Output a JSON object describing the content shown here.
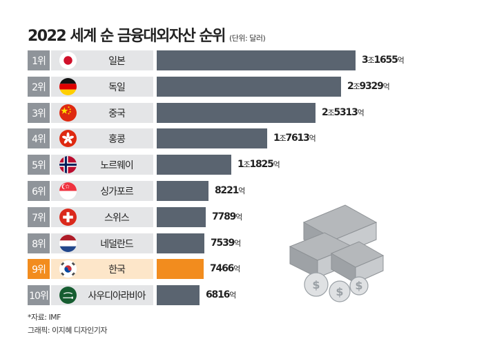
{
  "title": "2022 세계 순 금융대외자산 순위",
  "unit_note": "(단위: 달러)",
  "chart_data": {
    "type": "bar",
    "orientation": "horizontal",
    "title": "2022 세계 순 금융대외자산 순위",
    "unit": "달러",
    "categories": [
      "일본",
      "독일",
      "중국",
      "홍콩",
      "노르웨이",
      "싱가포르",
      "스위스",
      "네덜란드",
      "한국",
      "사우디아라비아"
    ],
    "values": [
      3.1655,
      2.9329,
      2.5313,
      1.7613,
      1.1825,
      0.8221,
      0.7789,
      0.7539,
      0.7466,
      0.6816
    ],
    "value_unit": "조 달러",
    "xlim": [
      0,
      3.3
    ],
    "highlight": "한국",
    "colors": {
      "bar": "#5a6470",
      "highlight": "#f28c1e",
      "rank_bg": "#8f949a",
      "label_bg": "#e4e5e7",
      "highlight_label_bg": "#fde6c9"
    },
    "rows": [
      {
        "rank": "1위",
        "country": "일본",
        "flag": "japan-flag",
        "value_num": "3",
        "value_unit1": "조",
        "value_num2": "1655",
        "value_unit2": "억"
      },
      {
        "rank": "2위",
        "country": "독일",
        "flag": "germany-flag",
        "value_num": "2",
        "value_unit1": "조",
        "value_num2": "9329",
        "value_unit2": "억"
      },
      {
        "rank": "3위",
        "country": "중국",
        "flag": "china-flag",
        "value_num": "2",
        "value_unit1": "조",
        "value_num2": "5313",
        "value_unit2": "억"
      },
      {
        "rank": "4위",
        "country": "홍콩",
        "flag": "hongkong-flag",
        "value_num": "1",
        "value_unit1": "조",
        "value_num2": "7613",
        "value_unit2": "억"
      },
      {
        "rank": "5위",
        "country": "노르웨이",
        "flag": "norway-flag",
        "value_num": "1",
        "value_unit1": "조",
        "value_num2": "1825",
        "value_unit2": "억"
      },
      {
        "rank": "6위",
        "country": "싱가포르",
        "flag": "singapore-flag",
        "value_num": "",
        "value_unit1": "",
        "value_num2": "8221",
        "value_unit2": "억"
      },
      {
        "rank": "7위",
        "country": "스위스",
        "flag": "switzerland-flag",
        "value_num": "",
        "value_unit1": "",
        "value_num2": "7789",
        "value_unit2": "억"
      },
      {
        "rank": "8위",
        "country": "네덜란드",
        "flag": "netherlands-flag",
        "value_num": "",
        "value_unit1": "",
        "value_num2": "7539",
        "value_unit2": "억"
      },
      {
        "rank": "9위",
        "country": "한국",
        "flag": "korea-flag",
        "value_num": "",
        "value_unit1": "",
        "value_num2": "7466",
        "value_unit2": "억"
      },
      {
        "rank": "10위",
        "country": "사우디아라비아",
        "flag": "saudi-arabia-flag",
        "value_num": "",
        "value_unit1": "",
        "value_num2": "6816",
        "value_unit2": "억"
      }
    ]
  },
  "source": "*자료: IMF",
  "credit": "그래픽: 이지혜 디자인기자",
  "illustration": "money-stack-illustration"
}
